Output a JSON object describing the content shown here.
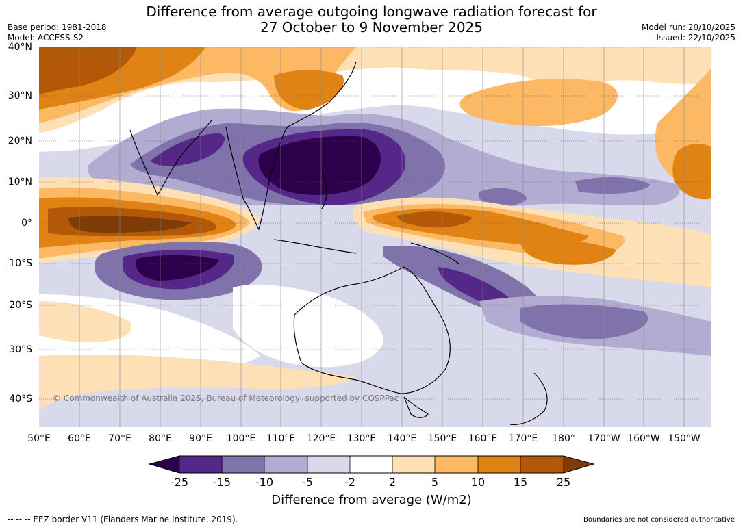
{
  "title": {
    "line1": "Difference from average outgoing longwave radiation forecast for",
    "line2": "27 October to 9 November 2025"
  },
  "meta": {
    "base_period": "Base period: 1981-2018",
    "model": "Model: ACCESS-S2",
    "model_run": "Model run: 20/10/2025",
    "issued": "Issued: 22/10/2025"
  },
  "map": {
    "longitude_labels": [
      "50°E",
      "60°E",
      "70°E",
      "80°E",
      "90°E",
      "100°E",
      "110°E",
      "120°E",
      "130°E",
      "140°E",
      "150°E",
      "160°E",
      "170°E",
      "180°",
      "170°W",
      "160°W",
      "150°W"
    ],
    "latitude_labels": [
      "40°N",
      "30°N",
      "20°N",
      "10°N",
      "0°",
      "10°S",
      "20°S",
      "30°S",
      "40°S"
    ],
    "copyright": "© Commonwealth of Australia 2025, Bureau of Meteorology, supported by COSPPac"
  },
  "colorbar": {
    "ticks": [
      "-25",
      "-15",
      "-10",
      "-5",
      "-2",
      "2",
      "5",
      "10",
      "15",
      "25"
    ],
    "label": "Difference from average (W/m2)",
    "colors": {
      "below_min": "#2d004b",
      "m25_m15": "#542788",
      "m15_m10": "#8073ac",
      "m10_m5": "#b2abd2",
      "m5_m2": "#d8daeb",
      "m2_p2": "#ffffff",
      "p2_p5": "#fee0b6",
      "p5_p10": "#fdb863",
      "p10_p15": "#e08214",
      "p15_p25": "#b35806",
      "above_max": "#7f3b08"
    }
  },
  "footer": {
    "eez": "--  --  -- EEZ border V11 (Flanders Marine Institute, 2019).",
    "disclaimer": "Boundaries are not considered authoritative"
  }
}
